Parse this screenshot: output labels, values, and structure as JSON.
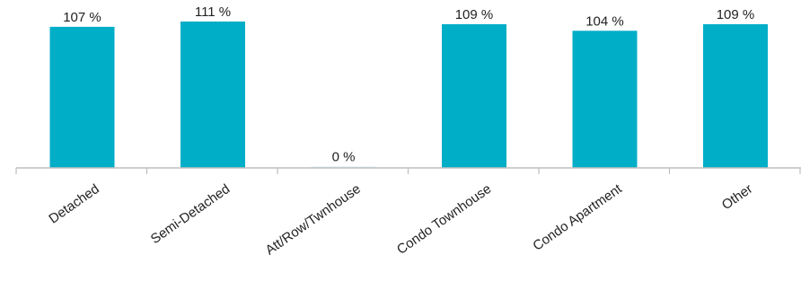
{
  "chart_data": {
    "type": "bar",
    "categories": [
      "Detached",
      "Semi-Detached",
      "Att/Row/Twnhouse",
      "Condo Townhouse",
      "Condo Apartment",
      "Other"
    ],
    "values": [
      107,
      111,
      0,
      109,
      104,
      109
    ],
    "value_labels": [
      "107 %",
      "111 %",
      "0 %",
      "109 %",
      "104 %",
      "109 %"
    ],
    "title": "",
    "xlabel": "",
    "ylabel": "",
    "ylim": [
      0,
      111
    ],
    "grid": false,
    "legend": "none",
    "colors": {
      "bar": "#00AEC7",
      "axis": "#BFBFBF",
      "text": "#222222"
    }
  }
}
